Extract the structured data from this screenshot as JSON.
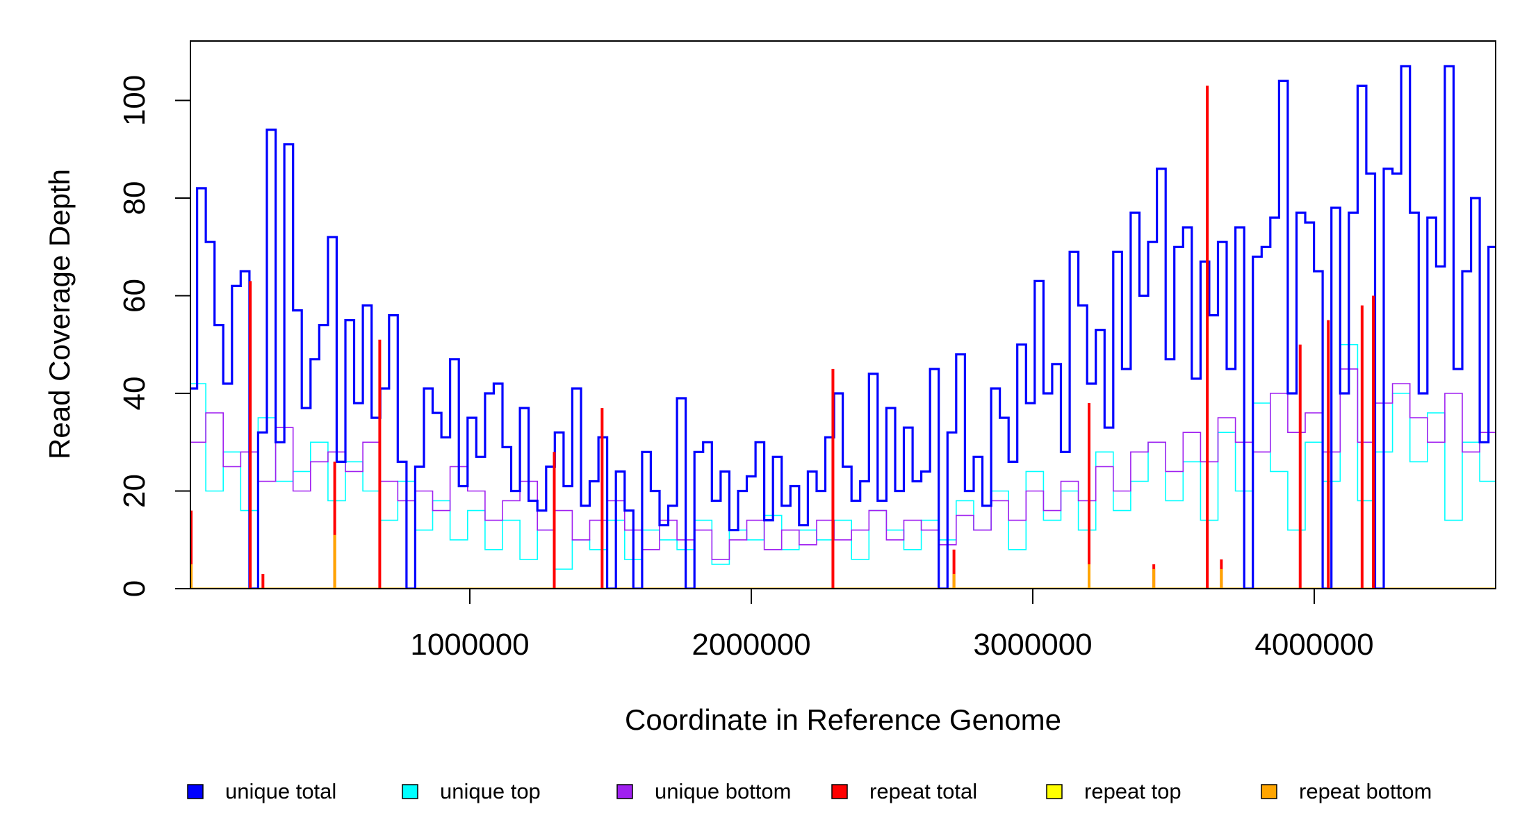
{
  "chart_data": {
    "type": "line",
    "title": "",
    "xlabel": "Coordinate in Reference Genome",
    "ylabel": "Read Coverage Depth",
    "xlim": [
      0,
      4640000
    ],
    "ylim": [
      0,
      110
    ],
    "xticks": [
      1000000,
      2000000,
      3000000,
      4000000
    ],
    "xtick_labels": [
      "1000000",
      "2000000",
      "3000000",
      "4000000"
    ],
    "yticks": [
      0,
      20,
      40,
      60,
      80,
      100
    ],
    "ytick_labels": [
      "0",
      "20",
      "40",
      "60",
      "80",
      "100"
    ],
    "grid": false,
    "legend_position": "bottom",
    "series": [
      {
        "name": "unique top",
        "color": "#00FFFF",
        "x_step": 62000,
        "values": [
          42,
          20,
          28,
          16,
          35,
          22,
          24,
          30,
          18,
          26,
          20,
          14,
          22,
          12,
          18,
          10,
          16,
          8,
          14,
          6,
          12,
          4,
          10,
          8,
          14,
          6,
          12,
          10,
          8,
          14,
          5,
          12,
          10,
          15,
          8,
          12,
          10,
          14,
          6,
          16,
          12,
          8,
          14,
          10,
          18,
          12,
          20,
          8,
          24,
          14,
          20,
          12,
          28,
          16,
          22,
          30,
          18,
          26,
          14,
          32,
          20,
          38,
          24,
          12,
          30,
          22,
          50,
          18,
          28,
          40,
          26,
          36,
          14,
          30,
          22
        ]
      },
      {
        "name": "unique bottom",
        "color": "#A020F0",
        "x_step": 62000,
        "values": [
          30,
          36,
          25,
          28,
          22,
          33,
          20,
          26,
          28,
          24,
          30,
          22,
          18,
          20,
          16,
          25,
          20,
          14,
          18,
          22,
          12,
          16,
          10,
          14,
          18,
          12,
          8,
          14,
          10,
          12,
          6,
          10,
          14,
          8,
          12,
          9,
          14,
          10,
          12,
          16,
          10,
          14,
          12,
          9,
          15,
          12,
          18,
          14,
          20,
          16,
          22,
          18,
          25,
          20,
          28,
          30,
          24,
          32,
          26,
          35,
          30,
          28,
          40,
          32,
          36,
          28,
          45,
          30,
          38,
          42,
          35,
          30,
          40,
          28,
          32
        ]
      },
      {
        "name": "unique total",
        "color": "#0000FF",
        "x_step": 31000,
        "values": [
          41,
          82,
          71,
          54,
          42,
          62,
          65,
          0,
          32,
          94,
          30,
          91,
          57,
          37,
          47,
          54,
          72,
          26,
          55,
          38,
          58,
          35,
          41,
          56,
          26,
          0,
          25,
          41,
          36,
          31,
          47,
          21,
          35,
          27,
          40,
          42,
          29,
          20,
          37,
          18,
          16,
          25,
          32,
          21,
          41,
          17,
          22,
          31,
          0,
          24,
          16,
          0,
          28,
          20,
          13,
          17,
          39,
          0,
          28,
          30,
          18,
          24,
          12,
          20,
          23,
          30,
          14,
          27,
          17,
          21,
          13,
          24,
          20,
          31,
          40,
          25,
          18,
          22,
          44,
          18,
          37,
          20,
          33,
          22,
          24,
          45,
          0,
          32,
          48,
          20,
          27,
          17,
          41,
          35,
          26,
          50,
          38,
          63,
          40,
          46,
          28,
          69,
          58,
          42,
          53,
          33,
          69,
          45,
          77,
          60,
          71,
          86,
          47,
          70,
          74,
          43,
          67,
          56,
          71,
          45,
          74,
          0,
          68,
          70,
          76,
          104,
          40,
          77,
          75,
          65,
          0,
          78,
          40,
          77,
          103,
          85,
          0,
          86,
          85,
          107,
          77,
          40,
          76,
          66,
          107,
          45,
          65,
          80,
          30,
          70
        ]
      },
      {
        "name": "repeat total",
        "color": "#FF0000",
        "spikes": [
          [
            10000,
            16
          ],
          [
            220000,
            63
          ],
          [
            265000,
            3
          ],
          [
            520000,
            26
          ],
          [
            680000,
            51
          ],
          [
            1300000,
            28
          ],
          [
            1470000,
            37
          ],
          [
            2290000,
            45
          ],
          [
            2720000,
            8
          ],
          [
            3200000,
            38
          ],
          [
            3430000,
            5
          ],
          [
            3620000,
            103
          ],
          [
            3670000,
            6
          ],
          [
            3950000,
            50
          ],
          [
            4050000,
            55
          ],
          [
            4170000,
            58
          ],
          [
            4210000,
            60
          ]
        ]
      },
      {
        "name": "repeat top",
        "color": "#FFFF00",
        "spikes": []
      },
      {
        "name": "repeat bottom",
        "color": "#FFA500",
        "spikes": [
          [
            10000,
            5
          ],
          [
            520000,
            11
          ],
          [
            2720000,
            3
          ],
          [
            3200000,
            5
          ],
          [
            3430000,
            4
          ],
          [
            3670000,
            4
          ]
        ]
      }
    ],
    "legend": [
      "unique total",
      "unique top",
      "unique bottom",
      "repeat total",
      "repeat top",
      "repeat bottom"
    ],
    "legend_colors": [
      "#0000FF",
      "#00FFFF",
      "#A020F0",
      "#FF0000",
      "#FFFF00",
      "#FFA500"
    ]
  }
}
